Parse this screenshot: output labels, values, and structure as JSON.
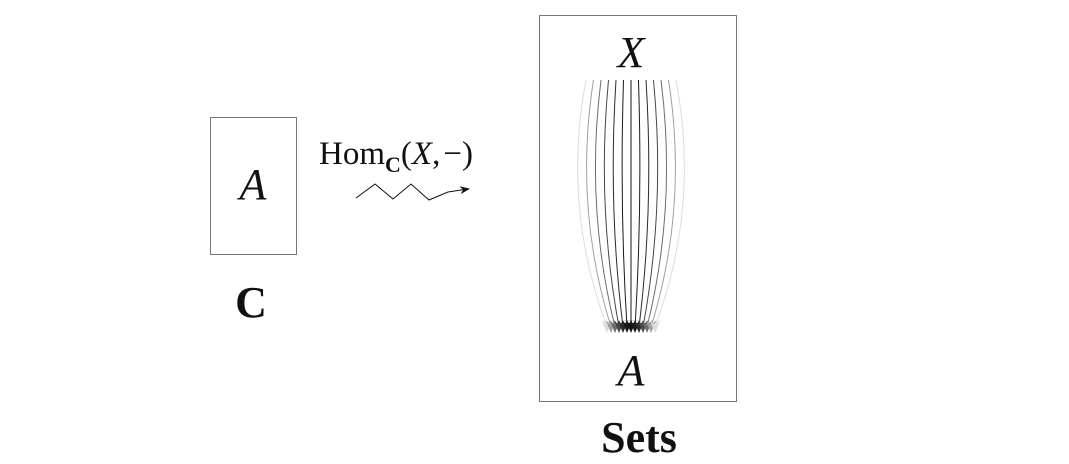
{
  "category": {
    "object_label": "A",
    "name": "C"
  },
  "functor": {
    "hom_prefix": "Hom",
    "hom_subscript": "C",
    "open_paren": "(",
    "argument_object": "X",
    "comma": ",",
    "placeholder": "−",
    "close_paren": ")"
  },
  "target": {
    "top_label": "X",
    "bottom_label": "A",
    "name": "Sets",
    "arrow_count": 13
  }
}
